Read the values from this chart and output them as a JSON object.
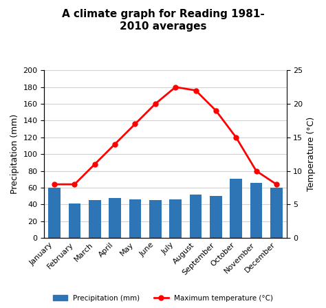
{
  "title": "A climate graph for Reading 1981-\n2010 averages",
  "months": [
    "January",
    "February",
    "March",
    "April",
    "May",
    "June",
    "July",
    "August",
    "September",
    "October",
    "November",
    "December"
  ],
  "precipitation": [
    60,
    41,
    45,
    48,
    46,
    45,
    46,
    52,
    50,
    71,
    66,
    60
  ],
  "temperature": [
    8,
    8,
    11,
    14,
    17,
    20,
    22.5,
    22,
    19,
    15,
    10,
    8
  ],
  "bar_color": "#2e75b6",
  "line_color": "#FF0000",
  "ylabel_left": "Precipitation (mm)",
  "ylabel_right": "Temperature (°C)",
  "ylim_left": [
    0,
    200
  ],
  "ylim_right": [
    0,
    25
  ],
  "yticks_left": [
    0,
    20,
    40,
    60,
    80,
    100,
    120,
    140,
    160,
    180,
    200
  ],
  "yticks_right": [
    0,
    5,
    10,
    15,
    20,
    25
  ],
  "legend_precip": "Precipitation (mm)",
  "legend_temp": "Maximum temperature (°C)",
  "bg_color": "#ffffff",
  "grid_color": "#d0d0d0"
}
